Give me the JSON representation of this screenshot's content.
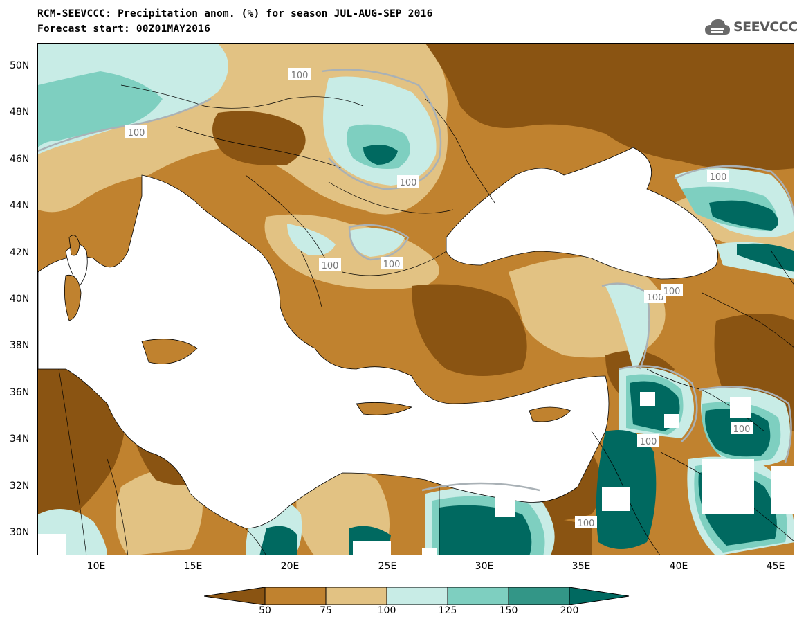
{
  "title_line1": "RCM-SEEVCCC: Precipitation anom. (%) for season JUL-AUG-SEP 2016",
  "title_line2": "Forecast start: 00Z01MAY2016",
  "logo_text": "SEEVCCC",
  "lat_labels": [
    "50N",
    "48N",
    "46N",
    "44N",
    "42N",
    "40N",
    "38N",
    "36N",
    "34N",
    "32N",
    "30N"
  ],
  "lon_labels": [
    "10E",
    "15E",
    "20E",
    "25E",
    "30E",
    "35E",
    "40E",
    "45E"
  ],
  "contour_label": "100",
  "colorbar": {
    "ticks": [
      "50",
      "75",
      "100",
      "125",
      "150",
      "200"
    ],
    "colors": [
      "#8a5412",
      "#c0822f",
      "#e2c283",
      "#c8ece6",
      "#7ecfc0",
      "#339687",
      "#006960"
    ]
  }
}
